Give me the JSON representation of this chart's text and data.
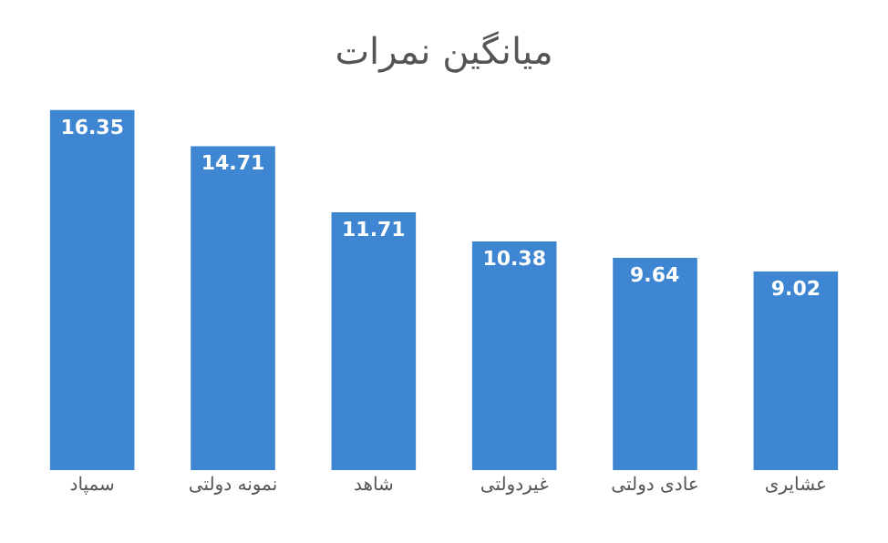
{
  "chart_data": {
    "type": "bar",
    "title": "میانگین نمرات",
    "categories": [
      "سمپاد",
      "نمونه دولتی",
      "شاهد",
      "غیردولتی",
      "عادی دولتی",
      "عشایری"
    ],
    "values": [
      16.35,
      14.71,
      11.71,
      10.38,
      9.64,
      9.02
    ],
    "color": "#3f86d2",
    "data_labels": true,
    "grid": false,
    "legend": false
  }
}
